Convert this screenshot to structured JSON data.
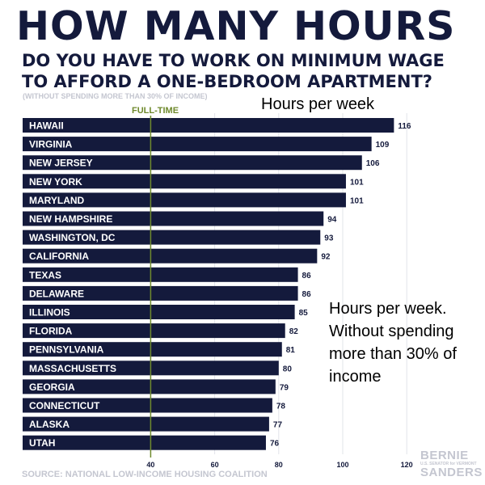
{
  "header": {
    "title": "HOW MANY HOURS",
    "subtitle_line1": "DO YOU HAVE TO WORK ON MINIMUM WAGE",
    "subtitle_line2": "TO AFFORD A ONE-BEDROOM APARTMENT?",
    "note": "(WITHOUT SPENDING MORE THAN 30% OF INCOME)"
  },
  "annotations": {
    "hours_heading": "Hours per week",
    "side_note": "Hours per week. Without spending more than 30% of income",
    "fulltime_label": "FULL-TIME"
  },
  "footer": {
    "source": "SOURCE: NATIONAL LOW-INCOME HOUSING COALITION",
    "logo_name_1": "BERNIE",
    "logo_small": "U.S. SENATOR for VERMONT",
    "logo_name_2": "SANDERS"
  },
  "colors": {
    "bar": "#141a3c",
    "fulltime_line": "#6f8a2d",
    "grid": "#e2e4ea"
  },
  "chart_data": {
    "type": "bar",
    "orientation": "horizontal",
    "categories": [
      "HAWAII",
      "VIRGINIA",
      "NEW JERSEY",
      "NEW YORK",
      "MARYLAND",
      "NEW HAMPSHIRE",
      "WASHINGTON, DC",
      "CALIFORNIA",
      "TEXAS",
      "DELAWARE",
      "ILLINOIS",
      "FLORIDA",
      "PENNSYLVANIA",
      "MASSACHUSETTS",
      "GEORGIA",
      "CONNECTICUT",
      "ALASKA",
      "UTAH"
    ],
    "values": [
      116,
      109,
      106,
      101,
      101,
      94,
      93,
      92,
      86,
      86,
      85,
      82,
      81,
      80,
      79,
      78,
      77,
      76
    ],
    "title": "HOW MANY HOURS",
    "xlabel": "",
    "ylabel": "",
    "xlim": [
      0,
      120
    ],
    "x_ticks": [
      40,
      60,
      80,
      100,
      120
    ],
    "reference_line": {
      "value": 40,
      "label": "FULL-TIME"
    },
    "grid": true,
    "legend": "none"
  }
}
